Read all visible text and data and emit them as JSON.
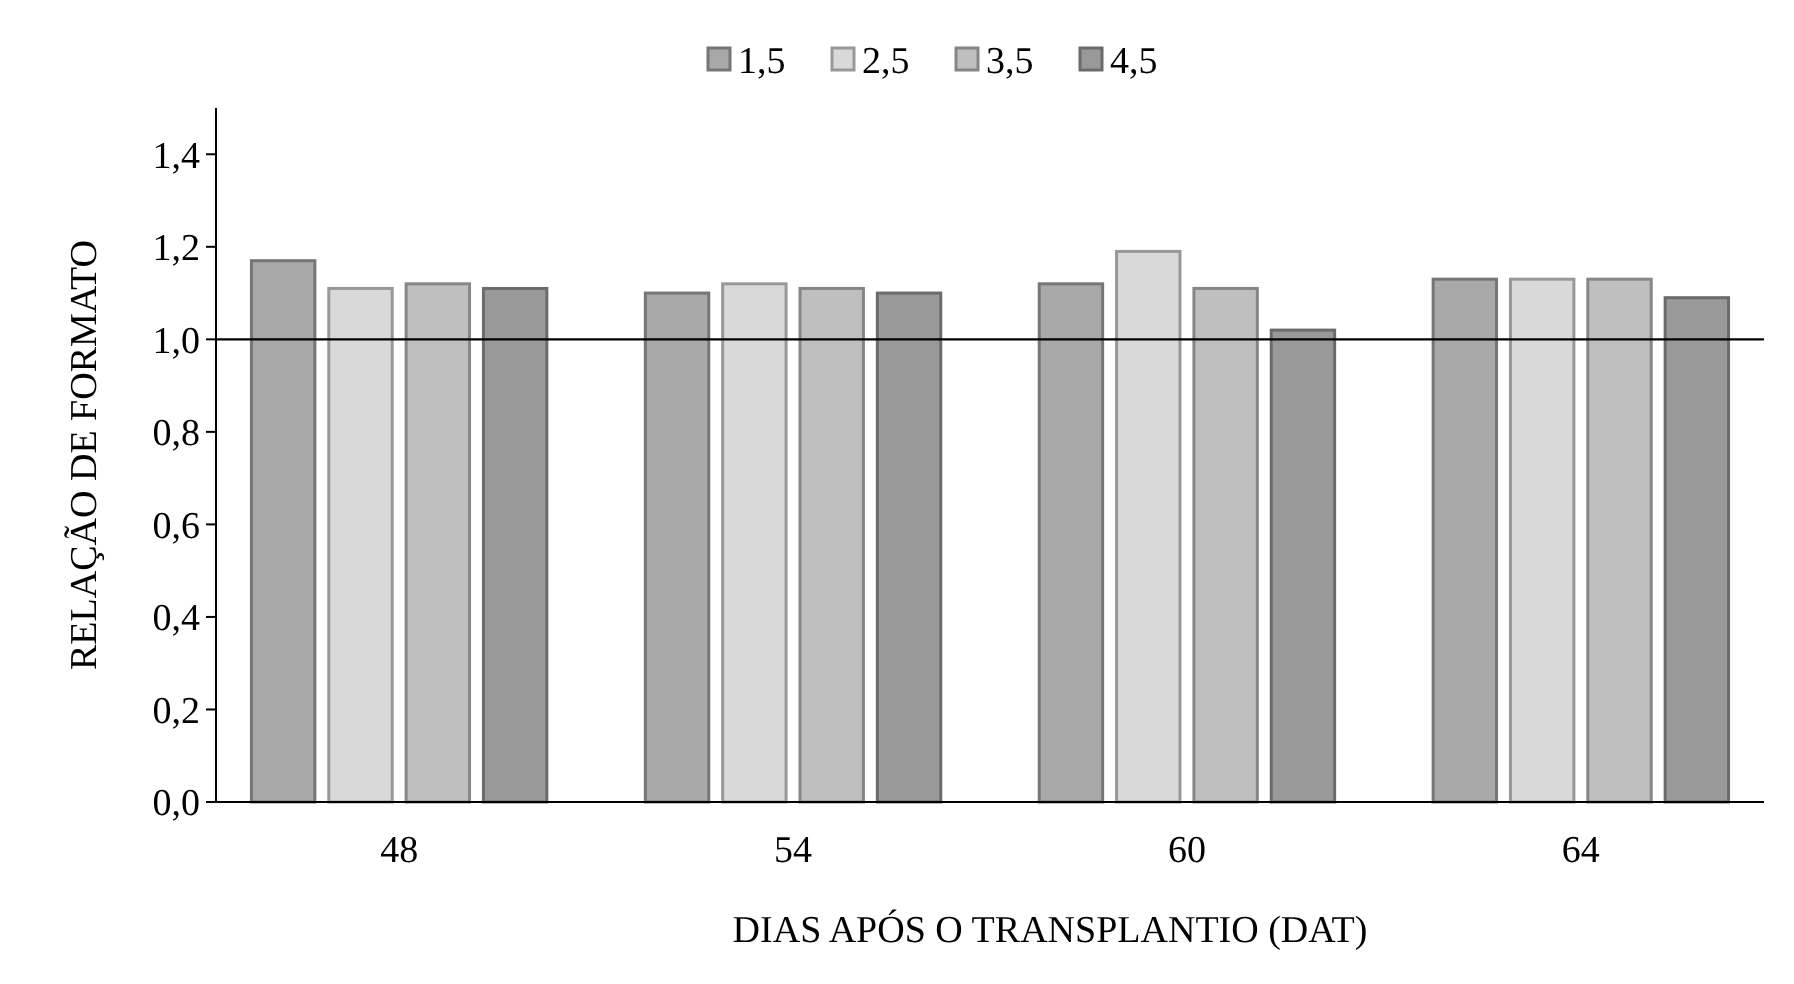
{
  "chart_data": {
    "type": "bar",
    "xlabel": "DIAS APÓS O TRANSPLANTIO (DAT)",
    "ylabel": "RELAÇÃO DE FORMATO",
    "categories": [
      "48",
      "54",
      "60",
      "64"
    ],
    "series": [
      {
        "name": "1,5",
        "color": "#a8a8a8",
        "values": [
          1.17,
          1.1,
          1.12,
          1.13
        ]
      },
      {
        "name": "2,5",
        "color": "#d9d9d9",
        "values": [
          1.11,
          1.12,
          1.19,
          1.13
        ]
      },
      {
        "name": "3,5",
        "color": "#bfbfbf",
        "values": [
          1.12,
          1.11,
          1.11,
          1.13
        ]
      },
      {
        "name": "4,5",
        "color": "#999999",
        "values": [
          1.11,
          1.1,
          1.02,
          1.09
        ]
      }
    ],
    "ylim": [
      0,
      1.5
    ],
    "yticks": [
      {
        "value": 0,
        "label": "0,0"
      },
      {
        "value": 0.2,
        "label": "0,2"
      },
      {
        "value": 0.4,
        "label": "0,4"
      },
      {
        "value": 0.6,
        "label": "0,6"
      },
      {
        "value": 0.8,
        "label": "0,8"
      },
      {
        "value": 1,
        "label": "1,0"
      },
      {
        "value": 1.2,
        "label": "1,2"
      },
      {
        "value": 1.4,
        "label": "1,4"
      }
    ],
    "ref_lines": [
      {
        "axis": "y",
        "value": 1,
        "color": "#000000"
      }
    ],
    "legend": "top",
    "grid": false
  }
}
